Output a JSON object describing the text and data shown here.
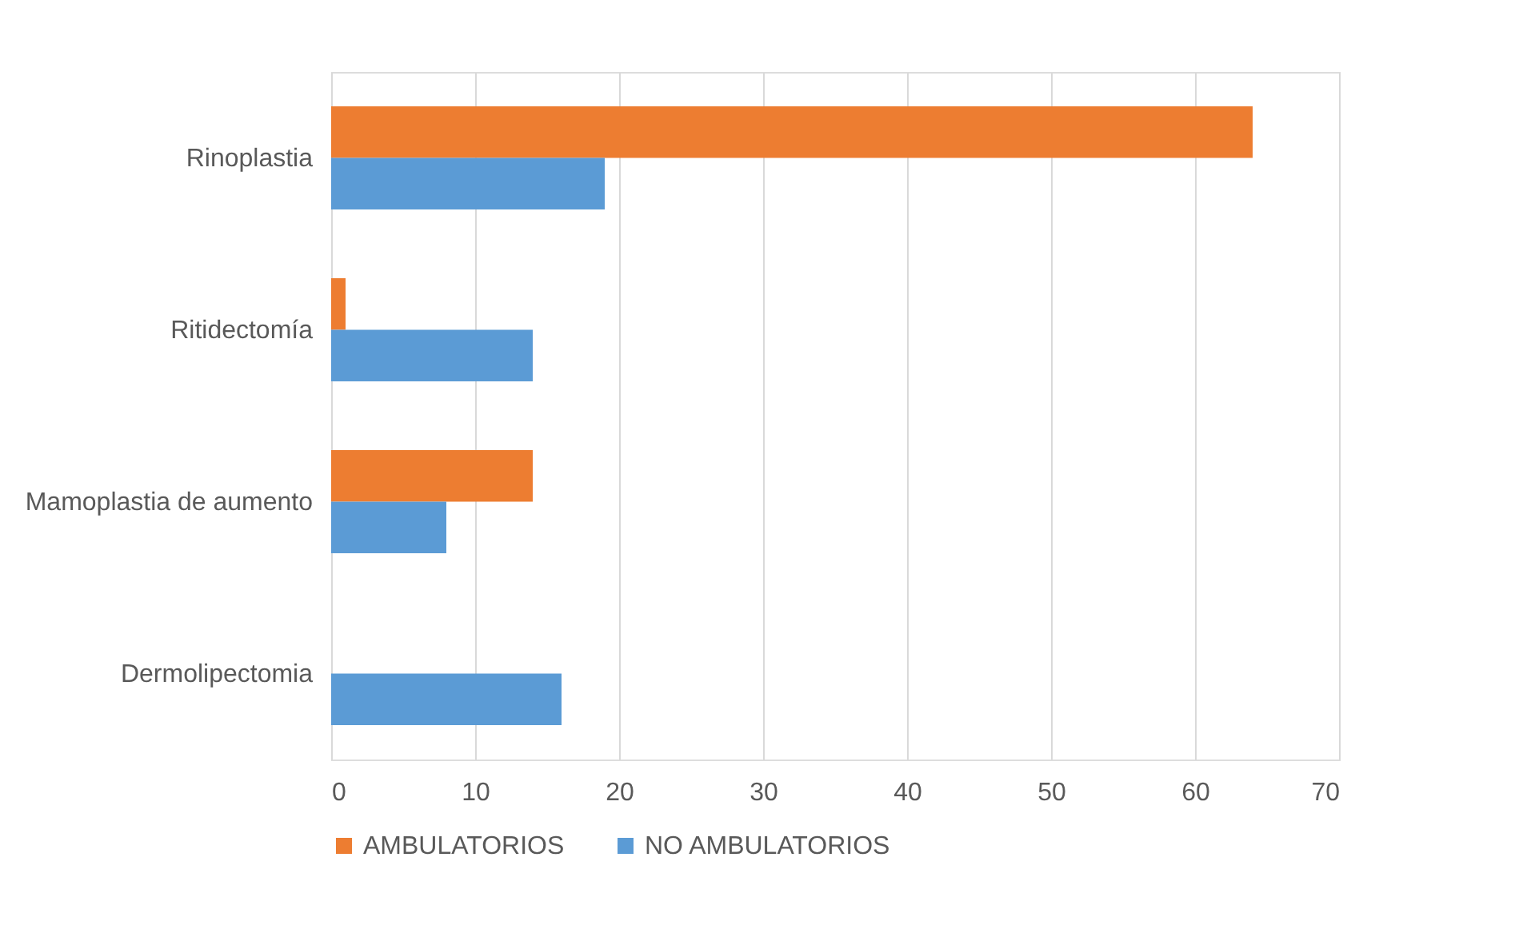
{
  "chart_data": {
    "type": "bar",
    "orientation": "horizontal",
    "categories": [
      "Rinoplastia",
      "Ritidectomía",
      "Mamoplastia de aumento",
      "Dermolipectomia"
    ],
    "series": [
      {
        "name": "AMBULATORIOS",
        "color": "#ed7d31",
        "values": [
          64,
          1,
          14,
          0
        ]
      },
      {
        "name": "NO AMBULATORIOS",
        "color": "#5b9bd5",
        "values": [
          19,
          14,
          8,
          16
        ]
      }
    ],
    "xlim": [
      0,
      70
    ],
    "xticks": [
      0,
      10,
      20,
      30,
      40,
      50,
      60,
      70
    ],
    "grid": "x",
    "legend": "bottom"
  }
}
